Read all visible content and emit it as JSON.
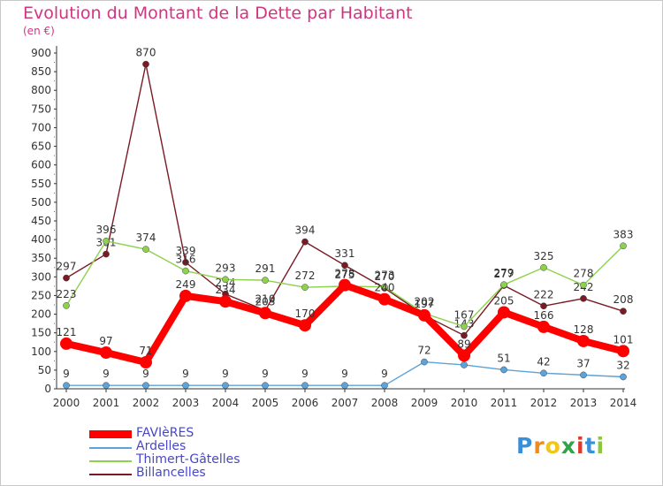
{
  "title": "Evolution du Montant de la Dette par Habitant",
  "subtitle": "(en €)",
  "logo": {
    "letters": [
      "P",
      "r",
      "o",
      "x",
      "i",
      "t",
      "i"
    ],
    "colors": [
      "#3a8fd9",
      "#f08a1c",
      "#f2c51a",
      "#2fa44a",
      "#e0392b",
      "#3a8fd9",
      "#8cc63f"
    ]
  },
  "chart_data": {
    "type": "line",
    "x": [
      "2000",
      "2001",
      "2002",
      "2003",
      "2004",
      "2005",
      "2006",
      "2007",
      "2008",
      "2009",
      "2010",
      "2011",
      "2012",
      "2013",
      "2014"
    ],
    "yticks": [
      0,
      50,
      100,
      150,
      200,
      250,
      300,
      350,
      400,
      450,
      500,
      550,
      600,
      650,
      700,
      750,
      800,
      850,
      900
    ],
    "ylim": [
      0,
      900
    ],
    "grid": false,
    "legend_position": "bottom-left",
    "series": [
      {
        "name": "Billancelles",
        "color": "#7a1a22",
        "values": [
          297,
          361,
          870,
          339,
          254,
          210,
          394,
          331,
          270,
          197,
          143,
          277,
          222,
          242,
          208
        ],
        "labels": [
          "297",
          "361",
          "870",
          "339",
          "254",
          "210",
          "394",
          "331",
          "270",
          "197",
          "143",
          "277",
          "222",
          "242",
          "208"
        ]
      },
      {
        "name": "Thimert-Gâtelles",
        "color": "#8ed14d",
        "values": [
          223,
          396,
          374,
          316,
          293,
          291,
          272,
          275,
          273,
          202,
          167,
          279,
          325,
          278,
          383
        ],
        "labels": [
          "223",
          "396",
          "374",
          "316",
          "293",
          "291",
          "272",
          "275",
          "273",
          "202",
          "167",
          "279",
          "325",
          "278",
          "383"
        ]
      },
      {
        "name": "Ardelles",
        "color": "#5ba3d8",
        "values": [
          9,
          9,
          9,
          9,
          9,
          9,
          9,
          9,
          9,
          72,
          64,
          51,
          42,
          37,
          32
        ],
        "labels": [
          "9",
          "9",
          "9",
          "9",
          "9",
          "9",
          "9",
          "9",
          "9",
          "72",
          "64",
          "51",
          "42",
          "37",
          "32"
        ]
      },
      {
        "name": "FAVIèRES",
        "color": "#ff0000",
        "values": [
          121,
          97,
          71,
          249,
          234,
          203,
          170,
          278,
          240,
          197,
          89,
          205,
          166,
          128,
          101
        ],
        "labels": [
          "121",
          "97",
          "71",
          "249",
          "234",
          "203",
          "170",
          "278",
          "240",
          "197",
          "89",
          "205",
          "166",
          "128",
          "101"
        ]
      }
    ],
    "legend": [
      "FAVIèRES",
      "Ardelles",
      "Thimert-Gâtelles",
      "Billancelles"
    ]
  }
}
